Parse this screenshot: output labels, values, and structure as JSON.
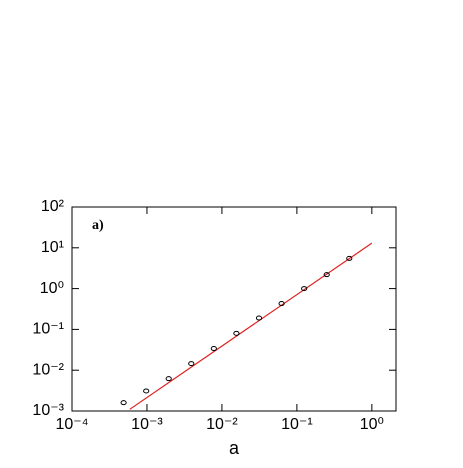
{
  "chart_data": {
    "type": "scatter",
    "annotation": "a)",
    "xlabel": "a",
    "xscale": "log",
    "yscale": "log",
    "xlim": [
      0.0001,
      2.1
    ],
    "ylim": [
      0.001,
      100
    ],
    "xticks": [
      {
        "value": 0.0001,
        "label": "10⁻⁴"
      },
      {
        "value": 0.001,
        "label": "10⁻³"
      },
      {
        "value": 0.01,
        "label": "10⁻²"
      },
      {
        "value": 0.1,
        "label": "10⁻¹"
      },
      {
        "value": 1,
        "label": "10⁰"
      }
    ],
    "yticks": [
      {
        "value": 0.001,
        "label": "10⁻³"
      },
      {
        "value": 0.01,
        "label": "10⁻²"
      },
      {
        "value": 0.1,
        "label": "10⁻¹"
      },
      {
        "value": 1,
        "label": "10⁰"
      },
      {
        "value": 10,
        "label": "10¹"
      },
      {
        "value": 100,
        "label": "10²"
      }
    ],
    "points": {
      "color": "#000000",
      "x": [
        0.000488,
        0.000977,
        0.00195,
        0.0039,
        0.0078,
        0.0156,
        0.03125,
        0.0625,
        0.125,
        0.25,
        0.5
      ],
      "values": [
        0.0016,
        0.0031,
        0.0062,
        0.0145,
        0.034,
        0.08,
        0.19,
        0.43,
        1.0,
        2.2,
        5.5
      ]
    },
    "fit_line": {
      "color": "#e02020",
      "x": [
        0.00059,
        1
      ],
      "values": [
        0.0011,
        13
      ]
    }
  }
}
